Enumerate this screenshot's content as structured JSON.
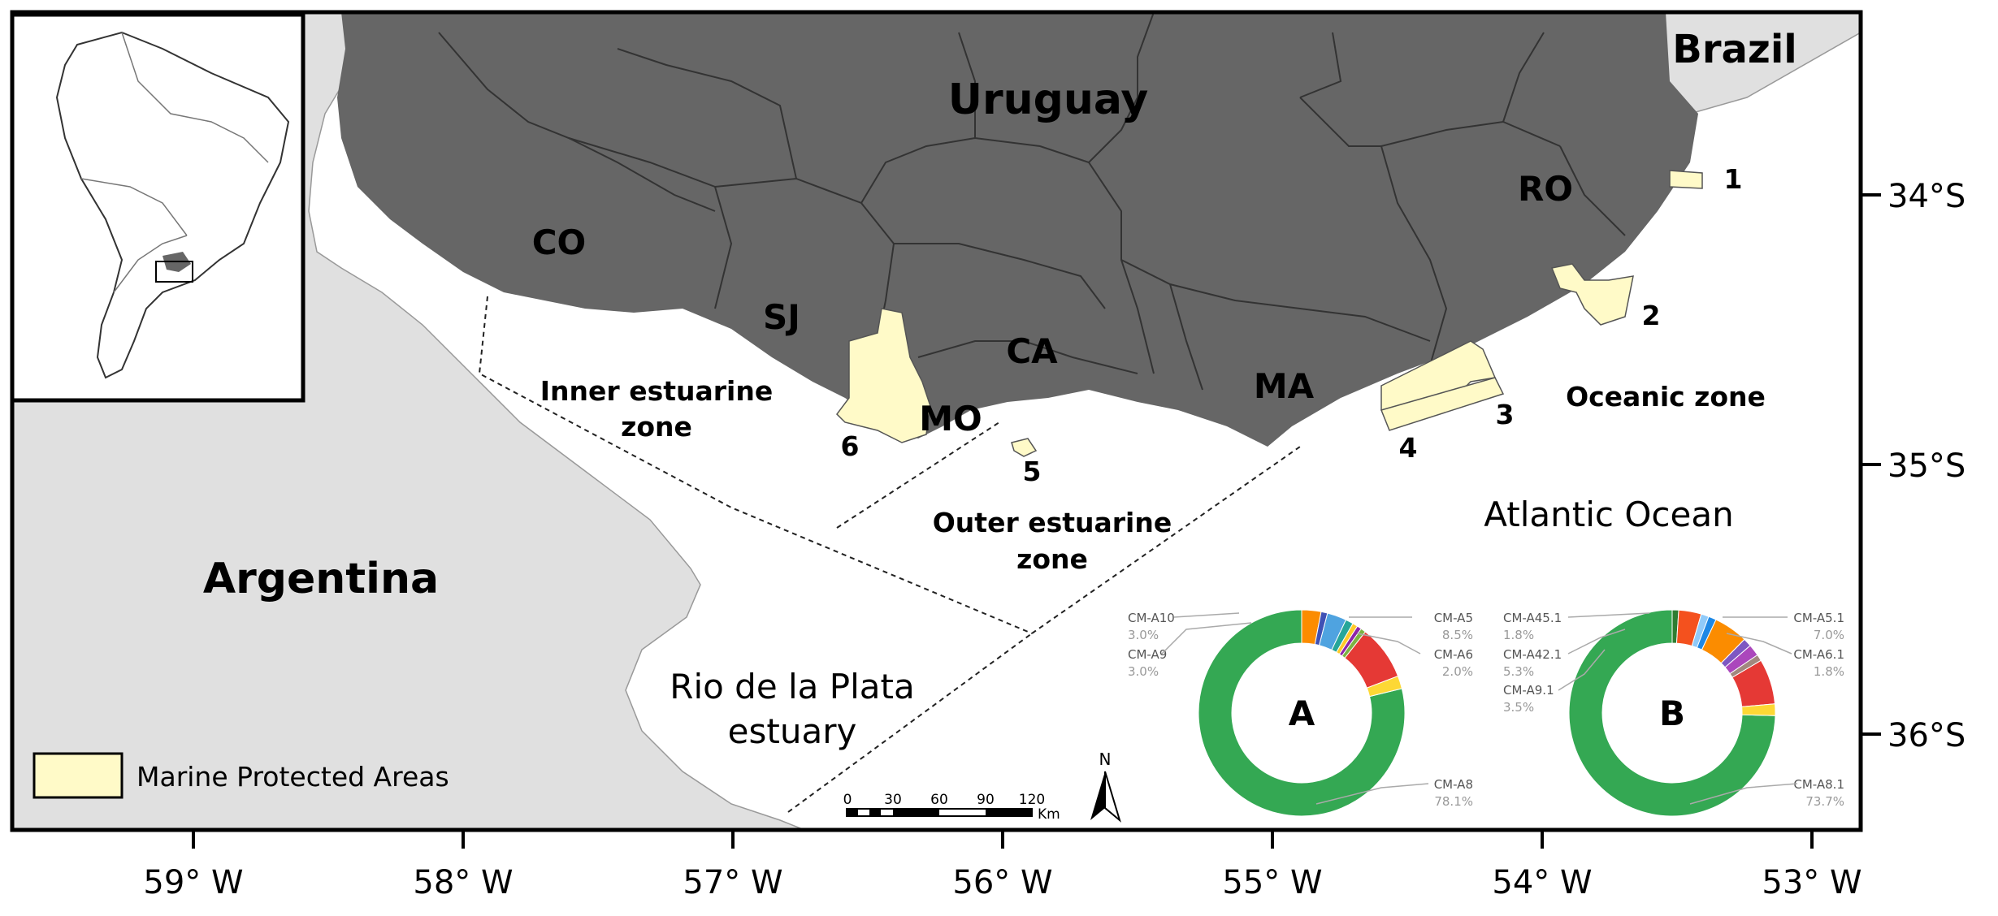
{
  "colors": {
    "uruguay": "#666666",
    "neighbors": "#e0e0e0",
    "water": "#ffffff",
    "mpa": "#fffac8",
    "dept_border": "#333333"
  },
  "countries": {
    "uruguay": "Uruguay",
    "brazil": "Brazil",
    "argentina": "Argentina"
  },
  "departments": [
    "CO",
    "SJ",
    "CA",
    "MO",
    "MA",
    "RO"
  ],
  "zones": {
    "inner_1": "Inner estuarine",
    "inner_2": "zone",
    "outer_1": "Outer estuarine",
    "outer_2": "zone",
    "oceanic": "Oceanic zone",
    "atlantic": "Atlantic Ocean",
    "plata_1": "Rio de la Plata",
    "plata_2": "estuary"
  },
  "mpa_numbers": [
    "1",
    "2",
    "3",
    "4",
    "5",
    "6"
  ],
  "legend": {
    "label": "Marine Protected Areas"
  },
  "scale_bar": {
    "ticks": [
      "0",
      "30",
      "60",
      "90",
      "120"
    ],
    "unit": "Km"
  },
  "north_arrow": {
    "label": "N"
  },
  "lat_labels": [
    "34°S",
    "35°S",
    "36°S"
  ],
  "lon_labels": [
    "59° W",
    "58° W",
    "57° W",
    "56° W",
    "55° W",
    "54° W",
    "53° W"
  ],
  "chart_data": [
    {
      "type": "pie",
      "title": "A",
      "labels": [
        {
          "name": "CM-A10",
          "value": "3.0%"
        },
        {
          "name": "CM-A9",
          "value": "3.0%"
        },
        {
          "name": "CM-A5",
          "value": "8.5%"
        },
        {
          "name": "CM-A6",
          "value": "2.0%"
        },
        {
          "name": "CM-A8",
          "value": "78.1%"
        }
      ],
      "slices": [
        {
          "name": "CM-A8",
          "value": 78.1,
          "color": "#34a853"
        },
        {
          "name": "CM-A9",
          "value": 3.0,
          "color": "#fb8c00"
        },
        {
          "name": "other-1",
          "value": 1.0,
          "color": "#3f51b5"
        },
        {
          "name": "CM-A10",
          "value": 3.0,
          "color": "#4fa3e0"
        },
        {
          "name": "other-2",
          "value": 1.2,
          "color": "#26a69a"
        },
        {
          "name": "other-3",
          "value": 0.8,
          "color": "#ffca28"
        },
        {
          "name": "other-4",
          "value": 0.7,
          "color": "#8e24aa"
        },
        {
          "name": "other-5",
          "value": 0.8,
          "color": "#7cb342"
        },
        {
          "name": "CM-A5",
          "value": 8.5,
          "color": "#e53935"
        },
        {
          "name": "CM-A6",
          "value": 2.0,
          "color": "#fdd835"
        }
      ]
    },
    {
      "type": "pie",
      "title": "B",
      "labels": [
        {
          "name": "CM-A45.1",
          "value": "1.8%"
        },
        {
          "name": "CM-A42.1",
          "value": "5.3%"
        },
        {
          "name": "CM-A9.1",
          "value": "3.5%"
        },
        {
          "name": "CM-A5.1",
          "value": "7.0%"
        },
        {
          "name": "CM-A6.1",
          "value": "1.8%"
        },
        {
          "name": "CM-A8.1",
          "value": "73.7%"
        }
      ],
      "slices": [
        {
          "name": "CM-A8.1",
          "value": 73.7,
          "color": "#34a853"
        },
        {
          "name": "other-1",
          "value": 1.0,
          "color": "#2e7d32"
        },
        {
          "name": "CM-A9.1",
          "value": 3.5,
          "color": "#f4511e"
        },
        {
          "name": "other-2",
          "value": 1.2,
          "color": "#90caf9"
        },
        {
          "name": "other-3",
          "value": 1.2,
          "color": "#1e88e5"
        },
        {
          "name": "CM-A42.1",
          "value": 5.3,
          "color": "#fb8c00"
        },
        {
          "name": "other-4",
          "value": 1.3,
          "color": "#7e57c2"
        },
        {
          "name": "CM-A45.1",
          "value": 1.8,
          "color": "#ab47bc"
        },
        {
          "name": "other-5",
          "value": 1.0,
          "color": "#a1887f"
        },
        {
          "name": "CM-A5.1",
          "value": 7.0,
          "color": "#e53935"
        },
        {
          "name": "CM-A6.1",
          "value": 1.8,
          "color": "#fdd835"
        }
      ]
    }
  ]
}
